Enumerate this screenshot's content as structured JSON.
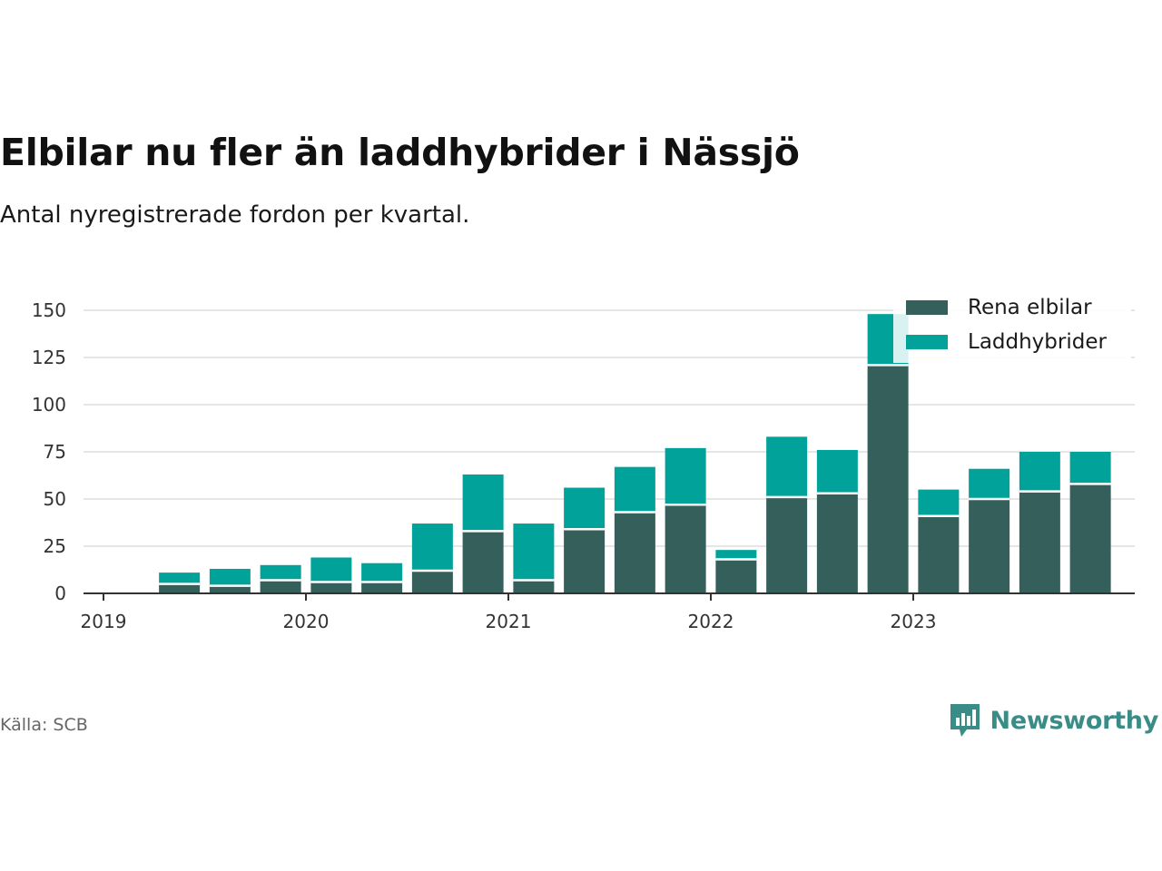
{
  "colors": {
    "rena_elbilar": "#355f5b",
    "laddhybrider": "#00a29a",
    "grid": "#dddddd",
    "axis": "#333333",
    "brand": "#3a8c87"
  },
  "source": "Källa: SCB",
  "brand": {
    "name": "Newsworthy",
    "icon": "newsworthy-logo-icon"
  },
  "chart_data": {
    "type": "bar",
    "stacked": true,
    "title": "Elbilar nu fler än laddhybrider i Nässjö",
    "subtitle": "Antal nyregistrerade fordon per kvartal.",
    "xlabel": "",
    "ylabel": "",
    "ylim": [
      0,
      150
    ],
    "yticks": [
      0,
      25,
      50,
      75,
      100,
      125,
      150
    ],
    "xticks": [
      "2019",
      "2020",
      "2021",
      "2022",
      "2023"
    ],
    "grid": true,
    "legend_position": "top-right",
    "categories": [
      "2019 Q2",
      "2019 Q3",
      "2019 Q4",
      "2020 Q1",
      "2020 Q2",
      "2020 Q3",
      "2020 Q4",
      "2021 Q1",
      "2021 Q2",
      "2021 Q3",
      "2021 Q4",
      "2022 Q1",
      "2022 Q2",
      "2022 Q3",
      "2022 Q4",
      "2023 Q1",
      "2023 Q2",
      "2023 Q3",
      "2023 Q4"
    ],
    "series": [
      {
        "name": "Rena elbilar",
        "values": [
          5,
          4,
          7,
          6,
          6,
          12,
          33,
          7,
          34,
          43,
          47,
          18,
          51,
          53,
          121,
          41,
          50,
          54,
          58
        ]
      },
      {
        "name": "Laddhybrider",
        "values": [
          6,
          9,
          8,
          13,
          10,
          25,
          30,
          30,
          22,
          24,
          30,
          5,
          32,
          23,
          27,
          14,
          16,
          21,
          17
        ]
      }
    ]
  }
}
